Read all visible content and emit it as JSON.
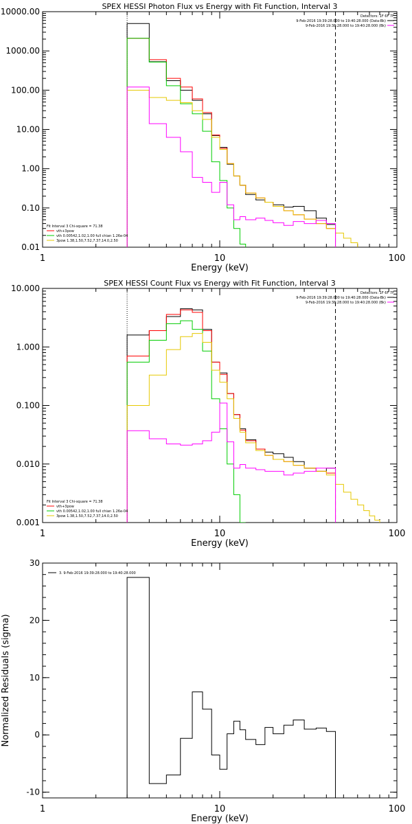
{
  "chart_data": [
    {
      "type": "line",
      "title": "SPEX HESSI Photon Flux vs Energy with Fit Function, Interval 3",
      "xlabel": "Energy (keV)",
      "ylabel": "",
      "xscale": "log",
      "yscale": "log",
      "xlim": [
        1,
        100
      ],
      "ylim": [
        0.01,
        10000
      ],
      "xticks": [
        {
          "v": 1,
          "label": "1"
        },
        {
          "v": 10,
          "label": "10"
        },
        {
          "v": 100,
          "label": "100"
        }
      ],
      "yticks": [
        {
          "v": 0.01,
          "label": "0.01"
        },
        {
          "v": 0.1,
          "label": "0.10"
        },
        {
          "v": 1,
          "label": "1.00"
        },
        {
          "v": 10,
          "label": "10.00"
        },
        {
          "v": 100,
          "label": "100.00"
        },
        {
          "v": 1000,
          "label": "1000.00"
        },
        {
          "v": 10000,
          "label": "10000.00"
        }
      ],
      "edges": [
        3,
        4,
        5,
        6,
        7,
        8,
        9,
        10,
        11,
        12,
        13,
        14,
        16,
        18,
        20,
        23,
        26,
        30,
        35,
        40,
        45,
        50,
        55,
        60
      ],
      "vlines": [
        {
          "x": 3,
          "style": "dotted",
          "color": "#000000"
        },
        {
          "x": 45,
          "style": "dashed",
          "color": "#000000"
        }
      ],
      "series": [
        {
          "name": "",
          "color": "#000000",
          "values": [
            5000,
            530,
            175,
            100,
            55,
            25,
            7,
            3.5,
            1.3,
            0.65,
            0.38,
            0.22,
            0.16,
            0.14,
            0.12,
            0.105,
            0.11,
            0.085,
            0.055,
            0.038
          ]
        },
        {
          "name": "vth+3pow",
          "color": "#ff0000",
          "values": [
            2100,
            600,
            200,
            120,
            60,
            27,
            7.2,
            3.3,
            1.35,
            0.65,
            0.38,
            0.24,
            0.18,
            0.14,
            0.11,
            0.085,
            0.067,
            0.052,
            0.04,
            0.03
          ]
        },
        {
          "name": "vth 0.00542,1.02,1.00  full chian 1.26e-04",
          "color": "#00cc00",
          "values": [
            2100,
            520,
            130,
            45,
            25,
            9,
            1.5,
            0.5,
            0.1,
            0.03,
            0.012
          ]
        },
        {
          "name": "3pow 1.38,1.50,7.52,7.37,14.0,2.50",
          "color": "#e6c800",
          "values": [
            100,
            65,
            55,
            48,
            30,
            18,
            6.3,
            3.1,
            1.35,
            0.65,
            0.38,
            0.24,
            0.18,
            0.14,
            0.11,
            0.085,
            0.067,
            0.052,
            0.04,
            0.03,
            0.023,
            0.017,
            0.013
          ]
        },
        {
          "name": "",
          "color": "#ff00ff",
          "values": [
            120,
            14,
            6.3,
            2.7,
            0.6,
            0.45,
            0.25,
            0.45,
            0.12,
            0.05,
            0.06,
            0.05,
            0.055,
            0.048,
            0.042,
            0.036,
            0.045,
            0.04,
            0.048,
            0.04
          ]
        }
      ],
      "legend_topright": [
        {
          "text": "Detectors: 1F 6F 7F",
          "color": ""
        },
        {
          "text": "9-Feb-2016 19:39:28.000 to 19:40:28.000 (Data-Bk)",
          "color": "#000000"
        },
        {
          "text": "9-Feb-2016 19:38:28.000 to 19:40:28.000 (Bk)",
          "color": "#ff00ff"
        }
      ],
      "legend_bottomleft": [
        {
          "text": "Fit Interval 3   Chi-square = 71.38",
          "color": ""
        },
        {
          "text": "vth+3pow",
          "color": "#ff0000"
        },
        {
          "text": "vth 0.00542,1.02,1.00  full chian 1.26e-04",
          "color": "#00cc00"
        },
        {
          "text": "3pow 1.38,1.50,7.52,7.37,14.0,2.50",
          "color": "#e6c800"
        }
      ]
    },
    {
      "type": "line",
      "title": "SPEX HESSI Count Flux vs Energy with Fit Function, Interval 3",
      "xlabel": "Energy (keV)",
      "ylabel": "",
      "xscale": "log",
      "yscale": "log",
      "xlim": [
        1,
        100
      ],
      "ylim": [
        0.001,
        10
      ],
      "xticks": [
        {
          "v": 1,
          "label": "1"
        },
        {
          "v": 10,
          "label": "10"
        },
        {
          "v": 100,
          "label": "100"
        }
      ],
      "yticks": [
        {
          "v": 0.001,
          "label": "0.001"
        },
        {
          "v": 0.01,
          "label": "0.010"
        },
        {
          "v": 0.1,
          "label": "0.100"
        },
        {
          "v": 1,
          "label": "1.000"
        },
        {
          "v": 10,
          "label": "10.000"
        }
      ],
      "edges": [
        3,
        4,
        5,
        6,
        7,
        8,
        9,
        10,
        11,
        12,
        13,
        14,
        16,
        18,
        20,
        23,
        26,
        30,
        35,
        40,
        45,
        50,
        55,
        60,
        65,
        70,
        75,
        80
      ],
      "vlines": [
        {
          "x": 3,
          "style": "dotted",
          "color": "#000000"
        },
        {
          "x": 45,
          "style": "dashed",
          "color": "#000000"
        }
      ],
      "series": [
        {
          "name": "",
          "color": "#000000",
          "values": [
            1.6,
            1.9,
            3.3,
            4.5,
            4.3,
            2.0,
            0.55,
            0.36,
            0.16,
            0.07,
            0.04,
            0.026,
            0.018,
            0.016,
            0.015,
            0.013,
            0.011,
            0.0085,
            0.0075,
            0.0085
          ]
        },
        {
          "name": "vth+3pow",
          "color": "#ff0000",
          "values": [
            0.7,
            1.9,
            3.6,
            4.3,
            3.9,
            1.9,
            0.55,
            0.34,
            0.16,
            0.07,
            0.038,
            0.025,
            0.018,
            0.014,
            0.012,
            0.011,
            0.0095,
            0.0085,
            0.0075,
            0.007
          ]
        },
        {
          "name": "vth 0.00542,1.02,1.00  full chian 1.26e-04",
          "color": "#00cc00",
          "values": [
            0.55,
            1.3,
            2.5,
            2.8,
            2.0,
            0.85,
            0.13,
            0.04,
            0.01,
            0.003,
            0.001
          ]
        },
        {
          "name": "3pow 1.38,1.50,7.52,7.37,14.0,2.50",
          "color": "#e6c800",
          "values": [
            0.1,
            0.33,
            0.9,
            1.5,
            1.7,
            1.2,
            0.4,
            0.25,
            0.13,
            0.06,
            0.035,
            0.023,
            0.017,
            0.014,
            0.012,
            0.011,
            0.0095,
            0.0085,
            0.0075,
            0.0065,
            0.0045,
            0.0033,
            0.0025,
            0.002,
            0.0016,
            0.0013,
            0.0011
          ]
        },
        {
          "name": "",
          "color": "#ff00ff",
          "values": [
            0.037,
            0.027,
            0.022,
            0.021,
            0.022,
            0.025,
            0.035,
            0.11,
            0.024,
            0.0085,
            0.0098,
            0.0085,
            0.008,
            0.0075,
            0.0075,
            0.0065,
            0.007,
            0.0075,
            0.0085,
            0.0085
          ]
        }
      ],
      "legend_topright": [
        {
          "text": "Detectors: 1F 6F 7F",
          "color": ""
        },
        {
          "text": "9-Feb-2016 19:39:28.000 to 19:40:28.000 (Data-Bk)",
          "color": "#000000"
        },
        {
          "text": "9-Feb-2016 19:38:28.000 to 19:40:28.000 (Bk)",
          "color": "#ff00ff"
        }
      ],
      "legend_bottomleft": [
        {
          "text": "Fit Interval 3   Chi-square = 71.38",
          "color": ""
        },
        {
          "text": "vth+3pow",
          "color": "#ff0000"
        },
        {
          "text": "vth 0.00542,1.02,1.00  full chian 1.26e-04",
          "color": "#00cc00"
        },
        {
          "text": "3pow 1.38,1.50,7.52,7.37,14.0,2.50",
          "color": "#e6c800"
        }
      ]
    },
    {
      "type": "line",
      "title": "",
      "xlabel": "Energy (keV)",
      "ylabel": "Normalized Residuals (sigma)",
      "xscale": "log",
      "yscale": "linear",
      "xlim": [
        1,
        100
      ],
      "ylim": [
        -11,
        30
      ],
      "xticks": [
        {
          "v": 1,
          "label": "1"
        },
        {
          "v": 10,
          "label": "10"
        },
        {
          "v": 100,
          "label": "100"
        }
      ],
      "yticks": [
        {
          "v": -10,
          "label": "-10"
        },
        {
          "v": 0,
          "label": "0"
        },
        {
          "v": 10,
          "label": "10"
        },
        {
          "v": 20,
          "label": "20"
        },
        {
          "v": 30,
          "label": "30"
        }
      ],
      "edges": [
        3,
        4,
        5,
        6,
        7,
        8,
        9,
        10,
        11,
        12,
        13,
        14,
        16,
        18,
        20,
        23,
        26,
        30,
        35,
        40,
        45
      ],
      "vlines": [],
      "series": [
        {
          "name": "3.  9-Feb-2016 19:39:28.000 to 19:40:28.000",
          "color": "#000000",
          "values": [
            27.5,
            -8.5,
            -7,
            -0.6,
            7.5,
            4.5,
            -3.5,
            -6,
            0.2,
            2.4,
            0.9,
            -0.8,
            -1.7,
            1.3,
            0.2,
            1.7,
            2.6,
            1.0,
            1.2,
            0.6
          ]
        }
      ],
      "legend_topright": [],
      "legend_bottomleft": [],
      "legend_topleft": [
        {
          "text": "3.  9-Feb-2016 19:39:28.000 to 19:40:28.000",
          "color": "#000000"
        }
      ]
    }
  ]
}
